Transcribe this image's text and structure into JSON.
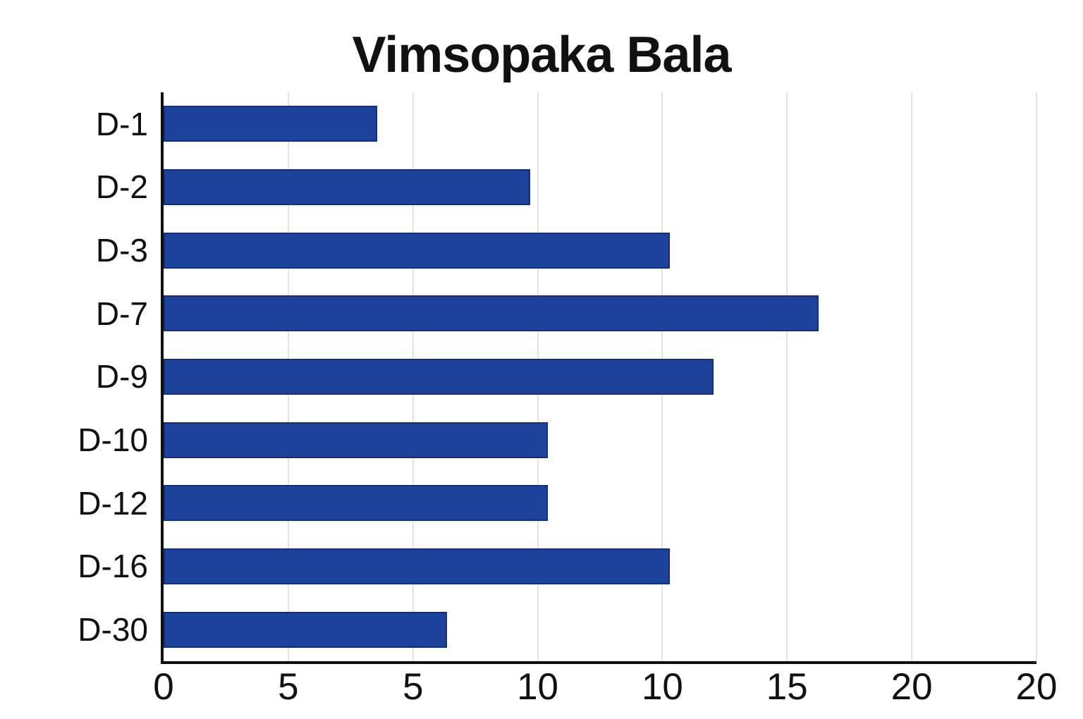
{
  "page": {
    "background": "#ffffff"
  },
  "chart_data": {
    "type": "bar",
    "orientation": "horizontal",
    "title": "Vimsopaka Bala",
    "categories": [
      "D-1",
      "D-2",
      "D-3",
      "D-7",
      "D-9",
      "D-10",
      "D-12",
      "D-16",
      "D-30"
    ],
    "values": [
      4.9,
      8.4,
      11.6,
      15.0,
      12.6,
      8.8,
      8.8,
      11.6,
      6.5
    ],
    "xlim": [
      0,
      20
    ],
    "x_tick_labels": [
      "0",
      "5",
      "5",
      "10",
      "10",
      "15",
      "20",
      "20"
    ],
    "ylabel": "",
    "xlabel": "",
    "legend": "none",
    "grid": "vertical",
    "bar_color": "#1C429B",
    "bar_border_color": "#142E7B",
    "axis_color": "#111111",
    "gridline_color": "#E3E3E3",
    "text_color": "#111111"
  }
}
